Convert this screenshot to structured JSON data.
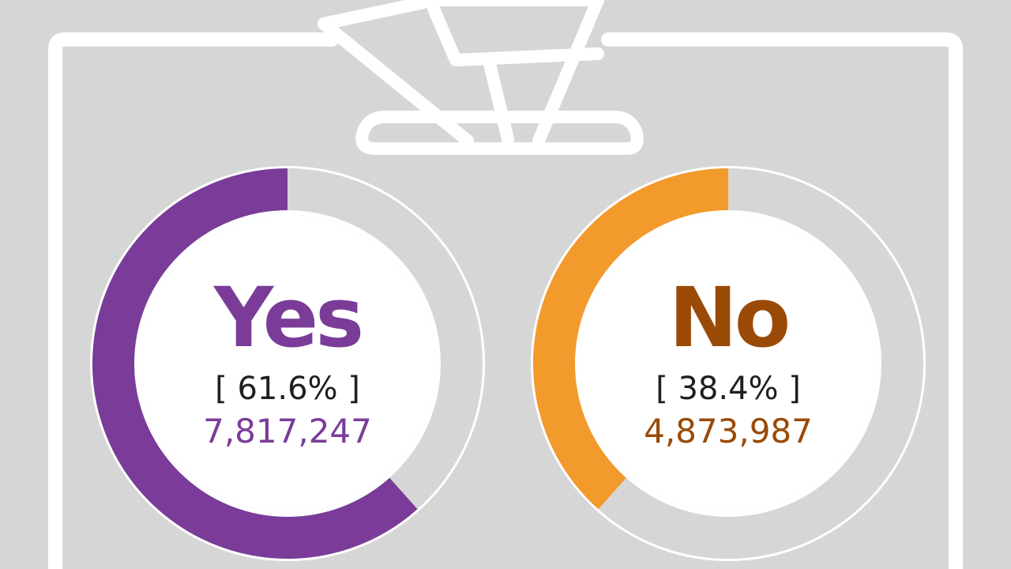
{
  "chart_data": {
    "type": "pie",
    "categories": [
      "Yes",
      "No"
    ],
    "values": [
      61.6,
      38.4
    ],
    "counts": [
      "7,817,247",
      "4,873,987"
    ],
    "percent_labels": [
      "[ 61.6% ]",
      "[ 38.4% ]"
    ],
    "colors": {
      "Yes": "#7a3c98",
      "No": "#f39a2c",
      "Yes_text": "#7a3c98",
      "No_text": "#9a4a06",
      "track": "#d6d6d6"
    }
  },
  "icons": {
    "ballot_box": "ballot-box-icon",
    "envelope": "envelope-icon"
  },
  "theme": {
    "background": "#d6d6d6",
    "stroke": "#ffffff",
    "text_dark": "#1f1f1f"
  }
}
